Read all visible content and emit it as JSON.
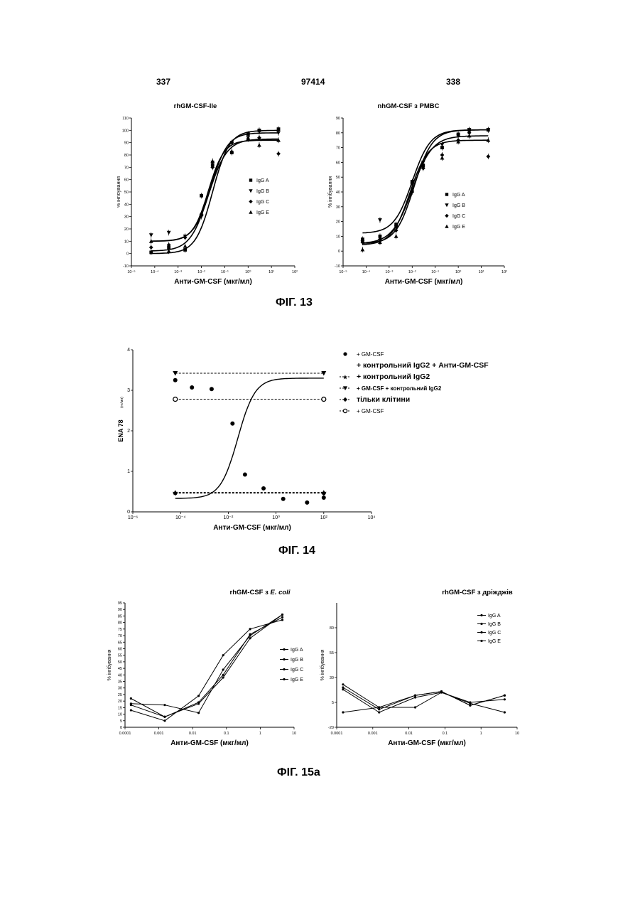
{
  "header": {
    "left_page": "337",
    "doc_number": "97414",
    "right_page": "338"
  },
  "figures": {
    "fig13": {
      "caption": "ФІГ. 13"
    },
    "fig14": {
      "caption": "ФІГ. 14"
    },
    "fig15a": {
      "caption": "ФІГ. 15а"
    }
  },
  "chart_data": [
    {
      "id": "fig13a",
      "type": "scatter",
      "title": "rhGM-CSF-Ile",
      "xlabel": "Анти-GM-CSF (мкг/мл)",
      "ylabel": "% інгібування",
      "xscale": "log",
      "xlim": [
        1e-05,
        100
      ],
      "ylim": [
        -10,
        110
      ],
      "xticks": [
        "10⁻⁵",
        "10⁻⁴",
        "10⁻³",
        "10⁻²",
        "10⁻¹",
        "10⁰",
        "10¹",
        "10²"
      ],
      "yticks": [
        -10,
        0,
        10,
        20,
        30,
        40,
        50,
        60,
        70,
        80,
        90,
        100,
        110
      ],
      "legend_position": "right",
      "x": [
        7e-05,
        0.0004,
        0.002,
        0.01,
        0.03,
        0.2,
        1,
        3,
        20
      ],
      "series": [
        {
          "name": "IgG A",
          "marker": "square",
          "values": [
            1,
            5,
            3,
            47,
            72,
            82,
            97,
            100,
            101
          ],
          "fit": {
            "bottom": 0,
            "top": 100,
            "ec50": 0.03,
            "hill": 1.2
          }
        },
        {
          "name": "IgG B",
          "marker": "tri-down",
          "values": [
            15,
            17,
            14,
            30,
            74,
            90,
            94,
            99,
            98
          ],
          "fit": {
            "bottom": 10,
            "top": 98,
            "ec50": 0.025,
            "hill": 1.2
          }
        },
        {
          "name": "IgG C",
          "marker": "diamond",
          "values": [
            5,
            7,
            13,
            32,
            70,
            90,
            93,
            94,
            81
          ],
          "fit": {
            "bottom": 2,
            "top": 93,
            "ec50": 0.02,
            "hill": 1.1
          }
        },
        {
          "name": "IgG E",
          "marker": "tri-up",
          "values": [
            10,
            2,
            6,
            32,
            75,
            83,
            93,
            88,
            92
          ],
          "fit": {
            "bottom": 10,
            "top": 92,
            "ec50": 0.02,
            "hill": 1.3
          }
        }
      ]
    },
    {
      "id": "fig13b",
      "type": "scatter",
      "title": "nhGM-CSF з PMBC",
      "xlabel": "Анти-GM-CSF (мкг/мл)",
      "ylabel": "% інгібування",
      "xscale": "log",
      "xlim": [
        1e-05,
        100
      ],
      "ylim": [
        -10,
        90
      ],
      "xticks": [
        "10⁻⁵",
        "10⁻⁴",
        "10⁻³",
        "10⁻²",
        "10⁻¹",
        "10⁰",
        "10¹",
        "10²"
      ],
      "yticks": [
        -10,
        0,
        10,
        20,
        30,
        40,
        50,
        60,
        70,
        80,
        90
      ],
      "legend_position": "right",
      "x": [
        7e-05,
        0.0004,
        0.002,
        0.01,
        0.03,
        0.2,
        1,
        3,
        20
      ],
      "series": [
        {
          "name": "IgG A",
          "marker": "square",
          "values": [
            8,
            10,
            18,
            47,
            58,
            70,
            79,
            82,
            82
          ],
          "fit": {
            "bottom": 5,
            "top": 82,
            "ec50": 0.012,
            "hill": 1.1
          }
        },
        {
          "name": "IgG B",
          "marker": "tri-down",
          "values": [
            6,
            21,
            16,
            45,
            60,
            72,
            78,
            82,
            82
          ],
          "fit": {
            "bottom": 12,
            "top": 82,
            "ec50": 0.01,
            "hill": 1.1
          }
        },
        {
          "name": "IgG C",
          "marker": "diamond",
          "values": [
            6,
            8,
            14,
            40,
            56,
            65,
            75,
            80,
            64
          ],
          "fit": {
            "bottom": 5,
            "top": 78,
            "ec50": 0.01,
            "hill": 1.0
          }
        },
        {
          "name": "IgG E",
          "marker": "tri-up",
          "values": [
            1,
            6,
            10,
            42,
            57,
            63,
            74,
            78,
            75
          ],
          "fit": {
            "bottom": 4,
            "top": 75,
            "ec50": 0.008,
            "hill": 1.1
          }
        }
      ]
    },
    {
      "id": "fig14",
      "type": "scatter",
      "title": "",
      "xlabel": "Анти-GM-CSF (мкг/мл)",
      "ylabel": "ENA 78",
      "ylabel_unit": "(нг/мл)",
      "xscale": "log",
      "xlim": [
        1e-06,
        10000
      ],
      "ylim": [
        0,
        4
      ],
      "xticks": [
        "10⁻⁶",
        "10⁻⁴",
        "10⁻²",
        "10⁰",
        "10²",
        "10⁴"
      ],
      "yticks": [
        0,
        1,
        2,
        3,
        4
      ],
      "legend_position": "right",
      "legend": [
        {
          "marker": "circle",
          "line": "none",
          "lines": [
            "+ GM-CSF",
            "+ контрольний IgG2 + Анти-GM-CSF"
          ]
        },
        {
          "marker": "star",
          "line": "dashed",
          "lines": [
            "+ контрольний IgG2"
          ]
        },
        {
          "marker": "tri-down",
          "line": "dashed",
          "lines": [
            "+ GM-CSF + контрольний IgG2"
          ]
        },
        {
          "marker": "diamond",
          "line": "dashed",
          "lines": [
            "тільки клітини"
          ]
        },
        {
          "marker": "open-circle",
          "line": "dashed",
          "lines": [
            "+ GM-CSF"
          ]
        }
      ],
      "series": [
        {
          "label_ref": 0,
          "x": [
            6e-05,
            0.0003,
            0.002,
            0.015,
            0.05,
            0.3,
            2,
            20,
            100
          ],
          "values": [
            3.25,
            3.07,
            3.03,
            2.18,
            0.92,
            0.58,
            0.32,
            0.23,
            0.35
          ],
          "fit": {
            "bottom": 0.33,
            "top": 3.3,
            "ec50": 0.025,
            "hill": 1.2
          }
        },
        {
          "label_ref": 1,
          "x": [
            6e-05,
            100
          ],
          "values": [
            0.48,
            0.48
          ]
        },
        {
          "label_ref": 2,
          "x": [
            6e-05,
            100
          ],
          "values": [
            3.42,
            3.42
          ]
        },
        {
          "label_ref": 3,
          "x": [
            6e-05,
            100
          ],
          "values": [
            0.46,
            0.46
          ]
        },
        {
          "label_ref": 4,
          "x": [
            6e-05,
            100
          ],
          "values": [
            2.78,
            2.78
          ]
        }
      ]
    },
    {
      "id": "fig15a_left",
      "type": "line",
      "title": "rhGM-CSF з",
      "title_italic": "E. coli",
      "xlabel": "Анти-GM-CSF (мкг/мл)",
      "ylabel": "% інгібування",
      "xscale": "log",
      "xlim": [
        0.0001,
        10
      ],
      "ylim": [
        0,
        95
      ],
      "xticks": [
        "0.0001",
        "0.001",
        "0.01",
        "0.1",
        "1",
        "10"
      ],
      "yticks": [
        0,
        5,
        10,
        15,
        20,
        25,
        30,
        35,
        40,
        45,
        50,
        55,
        60,
        65,
        70,
        75,
        80,
        85,
        90,
        95
      ],
      "legend_position": "right",
      "x": [
        0.00015,
        0.0015,
        0.015,
        0.08,
        0.5,
        4.5
      ],
      "series": [
        {
          "name": "IgG A",
          "values": [
            13,
            5,
            24,
            55,
            75,
            82
          ]
        },
        {
          "name": "IgG B",
          "values": [
            18,
            17,
            11,
            44,
            70,
            86
          ]
        },
        {
          "name": "IgG C",
          "values": [
            17,
            8,
            19,
            40,
            71,
            84
          ]
        },
        {
          "name": "IgG E",
          "values": [
            22,
            8,
            18,
            38,
            68,
            86
          ]
        }
      ]
    },
    {
      "id": "fig15a_right",
      "type": "line",
      "title": "rhGM-CSF з дріжджів",
      "xlabel": "Анти-GM-CSF (мкг/мл)",
      "ylabel": "% інгібування",
      "xscale": "log",
      "xlim": [
        0.0001,
        10
      ],
      "ylim": [
        -20,
        105
      ],
      "xticks": [
        "0.0001",
        "0.001",
        "0.01",
        "0.1",
        "1",
        "10"
      ],
      "yticks": [
        -20,
        5,
        30,
        55,
        80
      ],
      "legend_position": "top-right",
      "x": [
        0.00015,
        0.0015,
        0.015,
        0.08,
        0.5,
        4.5
      ],
      "series": [
        {
          "name": "IgG A",
          "values": [
            20,
            -2,
            12,
            16,
            2,
            12
          ]
        },
        {
          "name": "IgG B",
          "values": [
            18,
            -5,
            10,
            15,
            5,
            8
          ]
        },
        {
          "name": "IgG C",
          "values": [
            23,
            0,
            12,
            16,
            2,
            12
          ]
        },
        {
          "name": "IgG E",
          "values": [
            -5,
            0,
            0,
            15,
            4,
            -5
          ]
        }
      ]
    }
  ]
}
